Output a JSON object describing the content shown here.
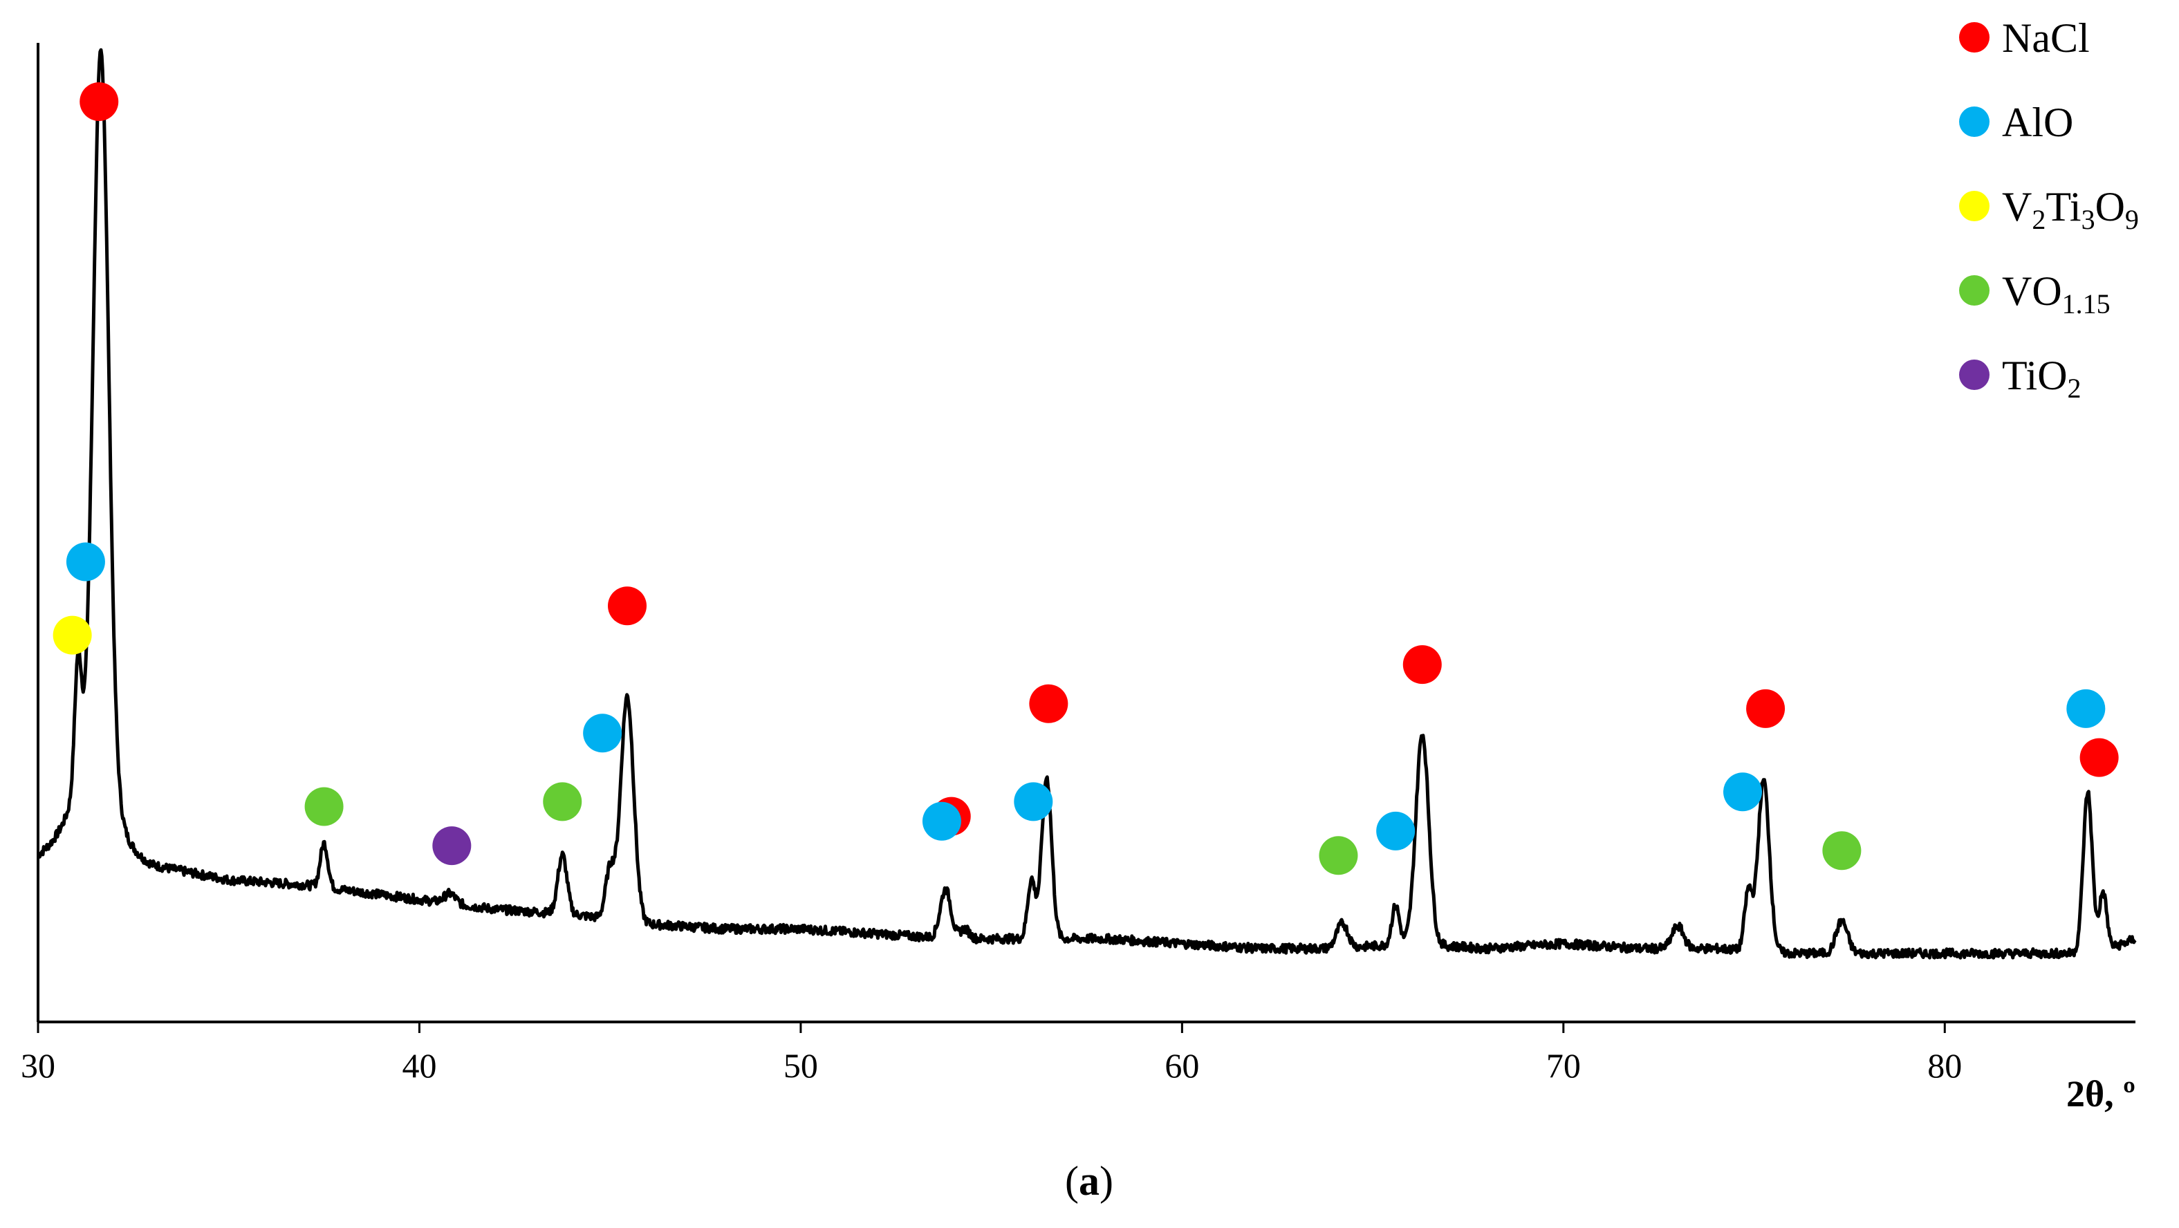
{
  "chart_data": {
    "type": "line",
    "title": "",
    "xlabel": "2θ, º",
    "ylabel": "",
    "xlim": [
      30,
      85
    ],
    "ylim": [
      0,
      100
    ],
    "grid": false,
    "legend_position": "top-right",
    "x_ticks": [
      "30",
      "40",
      "50",
      "60",
      "70",
      "80"
    ],
    "caption": {
      "open": "(",
      "letter": "a",
      "close": ")"
    },
    "legend": [
      {
        "phase": "NaCl",
        "color": "#ff0000",
        "parts": [
          [
            "NaCl",
            ""
          ]
        ]
      },
      {
        "phase": "AlO",
        "color": "#00b0f0",
        "parts": [
          [
            "AlO",
            ""
          ]
        ]
      },
      {
        "phase": "V2Ti3O9",
        "color": "#ffff00",
        "parts": [
          [
            "V",
            ""
          ],
          [
            "2",
            "sub"
          ],
          [
            "Ti",
            ""
          ],
          [
            "3",
            "sub"
          ],
          [
            "O",
            ""
          ],
          [
            "9",
            "sub"
          ]
        ]
      },
      {
        "phase": "VO1.15",
        "color": "#66cc33",
        "parts": [
          [
            "VO",
            ""
          ],
          [
            "1.15",
            "sub"
          ]
        ]
      },
      {
        "phase": "TiO2",
        "color": "#7030a0",
        "parts": [
          [
            "TiO",
            ""
          ],
          [
            "2",
            "sub"
          ]
        ]
      }
    ],
    "baseline": [
      [
        30,
        17
      ],
      [
        30.6,
        18.5
      ],
      [
        31.0,
        19.5
      ],
      [
        33,
        16
      ],
      [
        35,
        14.5
      ],
      [
        37,
        14
      ],
      [
        38,
        13.5
      ],
      [
        40,
        12.5
      ],
      [
        42,
        11.5
      ],
      [
        44,
        11
      ],
      [
        46,
        10
      ],
      [
        48,
        9.5
      ],
      [
        50,
        9.5
      ],
      [
        52,
        9
      ],
      [
        54,
        8.5
      ],
      [
        56,
        8.5
      ],
      [
        58,
        8.5
      ],
      [
        60,
        8
      ],
      [
        62,
        7.5
      ],
      [
        64,
        7.5
      ],
      [
        66,
        8
      ],
      [
        68,
        7.5
      ],
      [
        70,
        8
      ],
      [
        72,
        7.5
      ],
      [
        74,
        7.5
      ],
      [
        76,
        7
      ],
      [
        78,
        7
      ],
      [
        80,
        7
      ],
      [
        82,
        7
      ],
      [
        83,
        7
      ],
      [
        84,
        7
      ],
      [
        85,
        8.5
      ]
    ],
    "peaks": [
      {
        "x": 31.05,
        "height": 13,
        "width": 0.09
      },
      {
        "x": 31.65,
        "height": 74,
        "width": 0.2
      },
      {
        "x": 31.5,
        "height": 7,
        "width": 0.5
      },
      {
        "x": 37.5,
        "height": 4.5,
        "width": 0.1
      },
      {
        "x": 40.8,
        "height": 1,
        "width": 0.15
      },
      {
        "x": 43.75,
        "height": 6,
        "width": 0.12
      },
      {
        "x": 45.0,
        "height": 5,
        "width": 0.12
      },
      {
        "x": 45.45,
        "height": 23,
        "width": 0.17
      },
      {
        "x": 53.8,
        "height": 5,
        "width": 0.14
      },
      {
        "x": 54.3,
        "height": 1,
        "width": 0.12
      },
      {
        "x": 56.05,
        "height": 6,
        "width": 0.1
      },
      {
        "x": 56.45,
        "height": 16.5,
        "width": 0.13
      },
      {
        "x": 64.2,
        "height": 2.5,
        "width": 0.15
      },
      {
        "x": 65.6,
        "height": 4,
        "width": 0.1
      },
      {
        "x": 66.3,
        "height": 21.5,
        "width": 0.17
      },
      {
        "x": 73.0,
        "height": 2.3,
        "width": 0.15
      },
      {
        "x": 74.85,
        "height": 6,
        "width": 0.1
      },
      {
        "x": 75.25,
        "height": 17.5,
        "width": 0.15
      },
      {
        "x": 77.3,
        "height": 3.3,
        "width": 0.15
      },
      {
        "x": 83.75,
        "height": 16.5,
        "width": 0.12
      },
      {
        "x": 84.15,
        "height": 6,
        "width": 0.1
      }
    ],
    "markers": [
      {
        "phase": "NaCl",
        "x": 31.6,
        "y": 94
      },
      {
        "phase": "AlO",
        "x": 31.25,
        "y": 47
      },
      {
        "phase": "V2Ti3O9",
        "x": 30.9,
        "y": 39.5
      },
      {
        "phase": "VO1.15",
        "x": 37.5,
        "y": 22
      },
      {
        "phase": "TiO2",
        "x": 40.85,
        "y": 18
      },
      {
        "phase": "VO1.15",
        "x": 43.75,
        "y": 22.5
      },
      {
        "phase": "AlO",
        "x": 44.8,
        "y": 29.5
      },
      {
        "phase": "NaCl",
        "x": 45.45,
        "y": 42.5
      },
      {
        "phase": "NaCl",
        "x": 53.95,
        "y": 21
      },
      {
        "phase": "AlO",
        "x": 53.7,
        "y": 20.5
      },
      {
        "phase": "AlO",
        "x": 56.1,
        "y": 22.5
      },
      {
        "phase": "NaCl",
        "x": 56.5,
        "y": 32.5
      },
      {
        "phase": "VO1.15",
        "x": 64.1,
        "y": 17
      },
      {
        "phase": "AlO",
        "x": 65.6,
        "y": 19.5
      },
      {
        "phase": "NaCl",
        "x": 66.3,
        "y": 36.5
      },
      {
        "phase": "AlO",
        "x": 74.7,
        "y": 23.5
      },
      {
        "phase": "NaCl",
        "x": 75.3,
        "y": 32
      },
      {
        "phase": "VO1.15",
        "x": 77.3,
        "y": 17.5
      },
      {
        "phase": "AlO",
        "x": 83.7,
        "y": 32
      },
      {
        "phase": "NaCl",
        "x": 84.05,
        "y": 27
      }
    ]
  }
}
